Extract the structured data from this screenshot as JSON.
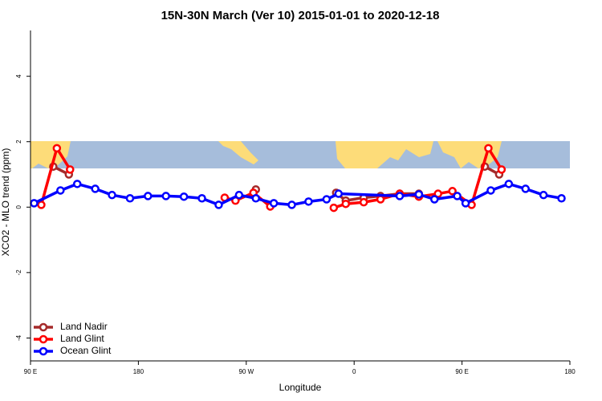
{
  "chart_data": {
    "type": "line",
    "title": "15N-30N March (Ver 10)   2015-01-01 to 2020-12-18",
    "x_label": "Longitude",
    "y_label": "XCO2 - MLO trend (ppm)",
    "xlim": [
      90,
      540
    ],
    "xticks": [
      {
        "value": 90,
        "label": "90 E"
      },
      180,
      {
        "value": 270,
        "label": "90 W"
      },
      {
        "value": 360,
        "label": "0"
      },
      {
        "value": 450,
        "label": "90 E"
      },
      {
        "value": 540,
        "label": "180"
      }
    ],
    "ylim": [
      -4.7,
      5.4
    ],
    "yticks": [
      -4,
      -2,
      0,
      2,
      4
    ],
    "legend": "bottom-left",
    "series": [
      {
        "name": "Land Nadir",
        "color": "#a52a2a",
        "x": [
          109,
          122,
          null,
          278,
          null,
          345,
          353,
          368,
          382,
          398,
          414,
          null,
          469,
          481
        ],
        "values": [
          1.24,
          1.0,
          null,
          0.54,
          null,
          0.44,
          0.2,
          0.29,
          0.34,
          0.41,
          0.41,
          null,
          1.24,
          1.0
        ]
      },
      {
        "name": "Land Glint",
        "color": "#ff0000",
        "x": [
          99,
          112,
          123,
          null,
          252,
          261,
          276,
          290,
          null,
          343,
          353,
          368,
          382,
          398,
          414,
          430,
          442,
          458,
          472,
          483
        ],
        "values": [
          0.07,
          1.8,
          1.15,
          null,
          0.29,
          0.2,
          0.44,
          0.02,
          null,
          -0.02,
          0.1,
          0.15,
          0.24,
          0.41,
          0.32,
          0.41,
          0.49,
          0.07,
          1.8,
          1.15
        ]
      },
      {
        "name": "Ocean Glint",
        "color": "#0000ff",
        "x": [
          93,
          115,
          129,
          144,
          158,
          173,
          188,
          203,
          218,
          233,
          247,
          264,
          278,
          293,
          308,
          322,
          337,
          347,
          398,
          414,
          427,
          446,
          453,
          474,
          489,
          503,
          518,
          533
        ],
        "values": [
          0.12,
          0.51,
          0.71,
          0.56,
          0.37,
          0.27,
          0.34,
          0.34,
          0.32,
          0.27,
          0.07,
          0.37,
          0.27,
          0.12,
          0.07,
          0.17,
          0.24,
          0.41,
          0.34,
          0.39,
          0.24,
          0.34,
          0.12,
          0.51,
          0.71,
          0.56,
          0.37,
          0.27
        ]
      }
    ]
  }
}
